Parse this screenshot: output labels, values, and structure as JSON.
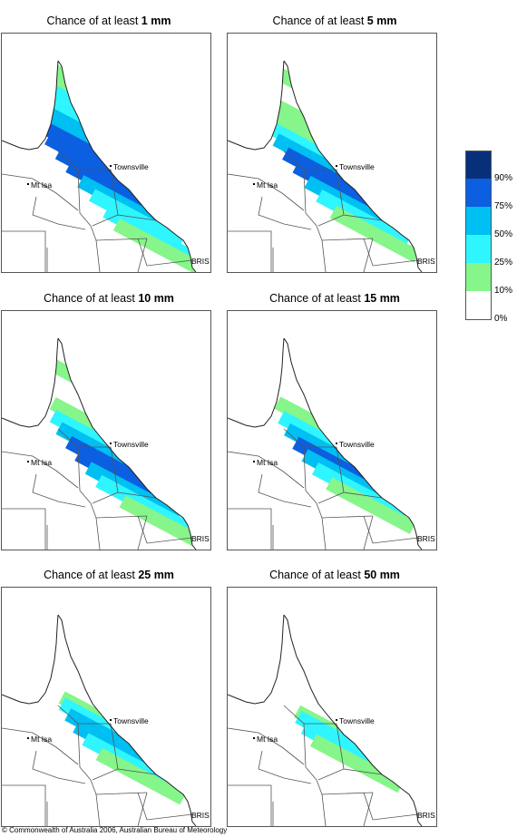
{
  "panels": [
    {
      "title_prefix": "Chance of at least ",
      "threshold": "1 mm",
      "bands": [
        [
          0.01,
          0.3,
          1
        ],
        [
          0.06,
          0.55,
          1
        ],
        [
          0.12,
          0.82,
          1
        ],
        [
          0.18,
          0.96,
          2
        ],
        [
          0.24,
          0.98,
          2
        ],
        [
          0.3,
          0.98,
          2
        ],
        [
          0.37,
          0.98,
          3
        ],
        [
          0.44,
          0.98,
          3
        ],
        [
          0.5,
          0.98,
          4
        ],
        [
          0.57,
          0.96,
          4
        ],
        [
          0.64,
          0.94,
          4
        ],
        [
          0.7,
          0.9,
          4
        ],
        [
          0.77,
          0.86,
          3
        ],
        [
          0.83,
          0.8,
          2
        ],
        [
          0.9,
          0.72,
          2
        ],
        [
          0.96,
          0.68,
          1
        ]
      ]
    },
    {
      "title_prefix": "Chance of at least ",
      "threshold": "5 mm",
      "bands": [
        [
          0.04,
          0.14,
          1
        ],
        [
          0.3,
          0.4,
          1
        ],
        [
          0.42,
          0.75,
          1
        ],
        [
          0.5,
          0.88,
          2
        ],
        [
          0.57,
          0.92,
          3
        ],
        [
          0.64,
          0.92,
          4
        ],
        [
          0.7,
          0.88,
          4
        ],
        [
          0.77,
          0.84,
          3
        ],
        [
          0.83,
          0.78,
          2
        ],
        [
          0.9,
          0.7,
          1
        ]
      ]
    },
    {
      "title_prefix": "Chance of at least ",
      "threshold": "10 mm",
      "bands": [
        [
          0.15,
          0.4,
          1
        ],
        [
          0.45,
          0.58,
          1
        ],
        [
          0.55,
          0.82,
          2
        ],
        [
          0.62,
          0.88,
          3
        ],
        [
          0.69,
          0.88,
          4
        ],
        [
          0.75,
          0.86,
          4
        ],
        [
          0.81,
          0.82,
          3
        ],
        [
          0.87,
          0.78,
          2
        ],
        [
          0.93,
          0.5,
          1
        ]
      ]
    },
    {
      "title_prefix": "Chance of at least ",
      "threshold": "15 mm",
      "bands": [
        [
          0.45,
          0.6,
          1
        ],
        [
          0.55,
          0.78,
          2
        ],
        [
          0.62,
          0.84,
          3
        ],
        [
          0.69,
          0.86,
          4
        ],
        [
          0.75,
          0.84,
          3
        ],
        [
          0.81,
          0.8,
          2
        ],
        [
          0.87,
          0.7,
          1
        ]
      ]
    },
    {
      "title_prefix": "Chance of at least ",
      "threshold": "25 mm",
      "bands": [
        [
          0.55,
          0.66,
          1
        ],
        [
          0.6,
          0.78,
          2
        ],
        [
          0.66,
          0.82,
          3
        ],
        [
          0.72,
          0.82,
          3
        ],
        [
          0.78,
          0.8,
          2
        ],
        [
          0.84,
          0.7,
          1
        ]
      ]
    },
    {
      "title_prefix": "Chance of at least ",
      "threshold": "50 mm",
      "bands": [
        [
          0.62,
          0.66,
          1
        ],
        [
          0.66,
          0.74,
          2
        ],
        [
          0.72,
          0.78,
          2
        ],
        [
          0.78,
          0.76,
          1
        ]
      ]
    }
  ],
  "places": {
    "townsville": "Townsville",
    "mt_isa": "Mt Isa",
    "brisbane": "BRIS"
  },
  "legend": {
    "colors": [
      "#08307a",
      "#0b5fe0",
      "#00bff2",
      "#2ff5ff",
      "#86f58a",
      "#ffffff"
    ],
    "labels": [
      "90%",
      "75%",
      "50%",
      "25%",
      "10%",
      "0%"
    ]
  },
  "band_colors": [
    "#ffffff",
    "#86f58a",
    "#2ff5ff",
    "#00bff2",
    "#0b5fe0",
    "#08307a"
  ],
  "copyright": "© Commonwealth of Australia 2006, Australian Bureau of Meteorology"
}
